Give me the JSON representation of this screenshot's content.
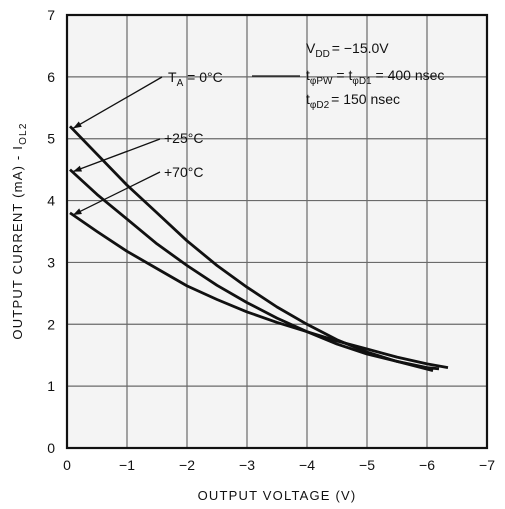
{
  "chart_data": {
    "type": "line",
    "xlabel": "OUTPUT VOLTAGE (V)",
    "ylabel": "OUTPUT CURRENT (mA) - I",
    "ylabel_sub": "OL2",
    "xlim": [
      0,
      -7
    ],
    "ylim": [
      0,
      7
    ],
    "x_ticks": [
      "0",
      "−1",
      "−2",
      "−3",
      "−4",
      "−5",
      "−6",
      "−7"
    ],
    "y_ticks": [
      "0",
      "1",
      "2",
      "3",
      "4",
      "5",
      "6",
      "7"
    ],
    "grid": true,
    "series": [
      {
        "name": "T_A = 0°C",
        "x": [
          -0.05,
          -0.5,
          -1.0,
          -1.5,
          -2.0,
          -2.5,
          -3.0,
          -3.5,
          -4.0,
          -4.5,
          -5.0,
          -5.5,
          -6.1
        ],
        "y": [
          5.2,
          4.75,
          4.25,
          3.8,
          3.35,
          2.95,
          2.6,
          2.28,
          2.0,
          1.75,
          1.55,
          1.4,
          1.25
        ]
      },
      {
        "name": "+25°C",
        "x": [
          -0.05,
          -0.5,
          -1.0,
          -1.5,
          -2.0,
          -2.5,
          -3.0,
          -3.5,
          -4.0,
          -4.5,
          -5.0,
          -5.5,
          -6.0,
          -6.2
        ],
        "y": [
          4.5,
          4.1,
          3.7,
          3.3,
          2.95,
          2.63,
          2.35,
          2.1,
          1.88,
          1.68,
          1.52,
          1.4,
          1.3,
          1.28
        ]
      },
      {
        "name": "+70°C",
        "x": [
          -0.05,
          -0.5,
          -1.0,
          -1.5,
          -2.0,
          -2.5,
          -3.0,
          -3.5,
          -4.0,
          -4.5,
          -5.0,
          -5.5,
          -6.0,
          -6.35
        ],
        "y": [
          3.8,
          3.5,
          3.18,
          2.9,
          2.62,
          2.4,
          2.2,
          2.03,
          1.88,
          1.73,
          1.6,
          1.47,
          1.36,
          1.3
        ]
      }
    ],
    "annotations": {
      "ta_label": "T",
      "ta_sub": "A",
      "ta_value": " = 0°C",
      "t25_label": "+25°C",
      "t70_label": "+70°C",
      "vdd_main": "V",
      "vdd_sub": "DD",
      "vdd_value": "= −15.0V",
      "tpw_t": "t",
      "tpw_sub": "φPW",
      "tpw_mid": " = t",
      "tpw_sub2": "φD1",
      "tpw_value": " = 400 nsec",
      "td2_t": "t",
      "td2_sub": "φD2",
      "td2_value": "= 150 nsec"
    }
  }
}
